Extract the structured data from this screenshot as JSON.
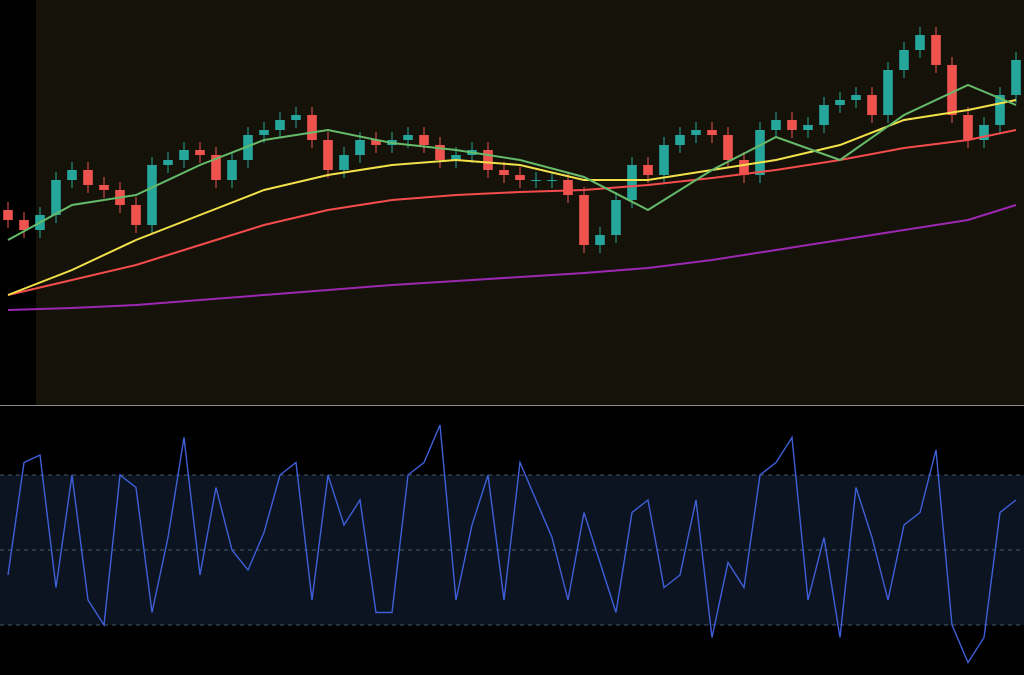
{
  "chart_data": [
    {
      "type": "candlestick",
      "open": [
        195,
        185,
        175,
        190,
        225,
        235,
        220,
        215,
        200,
        180,
        240,
        245,
        255,
        250,
        225,
        245,
        270,
        275,
        285,
        290,
        265,
        235,
        250,
        265,
        260,
        265,
        270,
        260,
        245,
        250,
        255,
        235,
        230,
        225,
        225,
        225,
        210,
        160,
        170,
        205,
        240,
        230,
        260,
        270,
        275,
        270,
        245,
        230,
        275,
        285,
        275,
        280,
        300,
        305,
        310,
        290,
        335,
        355,
        370,
        340,
        290,
        265,
        280,
        310
      ],
      "high": [
        203,
        193,
        198,
        233,
        243,
        243,
        228,
        223,
        208,
        248,
        253,
        263,
        263,
        258,
        253,
        278,
        283,
        293,
        298,
        298,
        273,
        258,
        273,
        273,
        273,
        278,
        278,
        268,
        258,
        263,
        263,
        243,
        238,
        233,
        233,
        233,
        218,
        178,
        213,
        248,
        248,
        268,
        278,
        283,
        283,
        278,
        253,
        283,
        293,
        293,
        288,
        308,
        313,
        318,
        318,
        343,
        363,
        378,
        378,
        348,
        298,
        288,
        318,
        353
      ],
      "low": [
        177,
        167,
        167,
        182,
        217,
        212,
        207,
        192,
        172,
        172,
        232,
        237,
        242,
        217,
        217,
        237,
        262,
        267,
        277,
        257,
        227,
        227,
        242,
        252,
        252,
        257,
        252,
        237,
        237,
        242,
        227,
        222,
        217,
        217,
        217,
        202,
        152,
        152,
        162,
        197,
        222,
        222,
        252,
        262,
        262,
        237,
        222,
        222,
        267,
        267,
        267,
        272,
        292,
        297,
        282,
        282,
        327,
        347,
        332,
        282,
        257,
        257,
        272,
        302
      ],
      "close": [
        185,
        175,
        190,
        225,
        235,
        220,
        215,
        200,
        180,
        240,
        245,
        255,
        250,
        225,
        245,
        270,
        275,
        285,
        290,
        265,
        235,
        250,
        265,
        260,
        265,
        270,
        260,
        245,
        250,
        255,
        235,
        230,
        225,
        225,
        225,
        210,
        160,
        170,
        205,
        240,
        230,
        260,
        270,
        275,
        270,
        245,
        230,
        275,
        285,
        275,
        280,
        300,
        305,
        310,
        290,
        335,
        355,
        370,
        340,
        290,
        265,
        280,
        310,
        345
      ],
      "up_color": "#26a69a",
      "down_color": "#ef5350",
      "ylim": [
        0,
        405
      ],
      "series": [
        {
          "color": "#9c27b0",
          "x": [
            0,
            4,
            8,
            12,
            16,
            20,
            24,
            28,
            32,
            36,
            40,
            44,
            48,
            52,
            56,
            60,
            63
          ],
          "values": [
            95,
            97,
            100,
            105,
            110,
            115,
            120,
            124,
            128,
            132,
            137,
            145,
            155,
            165,
            175,
            185,
            200
          ]
        },
        {
          "color": "#f44c4c",
          "x": [
            0,
            4,
            8,
            12,
            16,
            20,
            24,
            28,
            32,
            36,
            40,
            44,
            48,
            52,
            56,
            60,
            63
          ],
          "values": [
            110,
            125,
            140,
            160,
            180,
            195,
            205,
            210,
            213,
            215,
            220,
            227,
            235,
            245,
            257,
            265,
            275
          ]
        },
        {
          "color": "#f2e14a",
          "x": [
            0,
            4,
            8,
            12,
            16,
            20,
            24,
            28,
            32,
            36,
            40,
            44,
            48,
            52,
            56,
            60,
            63
          ],
          "values": [
            110,
            135,
            165,
            190,
            215,
            230,
            240,
            245,
            240,
            225,
            225,
            235,
            245,
            260,
            285,
            295,
            305
          ]
        },
        {
          "color": "#66bb6a",
          "x": [
            0,
            4,
            8,
            12,
            16,
            20,
            24,
            28,
            32,
            36,
            40,
            44,
            48,
            52,
            56,
            60,
            63
          ],
          "values": [
            165,
            200,
            210,
            240,
            265,
            275,
            262,
            255,
            245,
            228,
            195,
            235,
            268,
            245,
            290,
            320,
            300
          ]
        }
      ]
    },
    {
      "type": "line",
      "color": "#3f5fd8",
      "values": [
        40,
        85,
        88,
        35,
        80,
        30,
        20,
        80,
        75,
        25,
        55,
        95,
        40,
        75,
        50,
        42,
        57,
        80,
        85,
        30,
        80,
        60,
        70,
        25,
        25,
        80,
        85,
        100,
        30,
        60,
        80,
        30,
        85,
        70,
        55,
        30,
        65,
        45,
        25,
        65,
        70,
        35,
        40,
        70,
        15,
        45,
        35,
        80,
        85,
        95,
        30,
        55,
        15,
        75,
        55,
        30,
        60,
        65,
        90,
        20,
        5,
        15,
        65,
        70
      ],
      "ylim": [
        0,
        108
      ],
      "levels": [
        20,
        50,
        80
      ]
    }
  ]
}
